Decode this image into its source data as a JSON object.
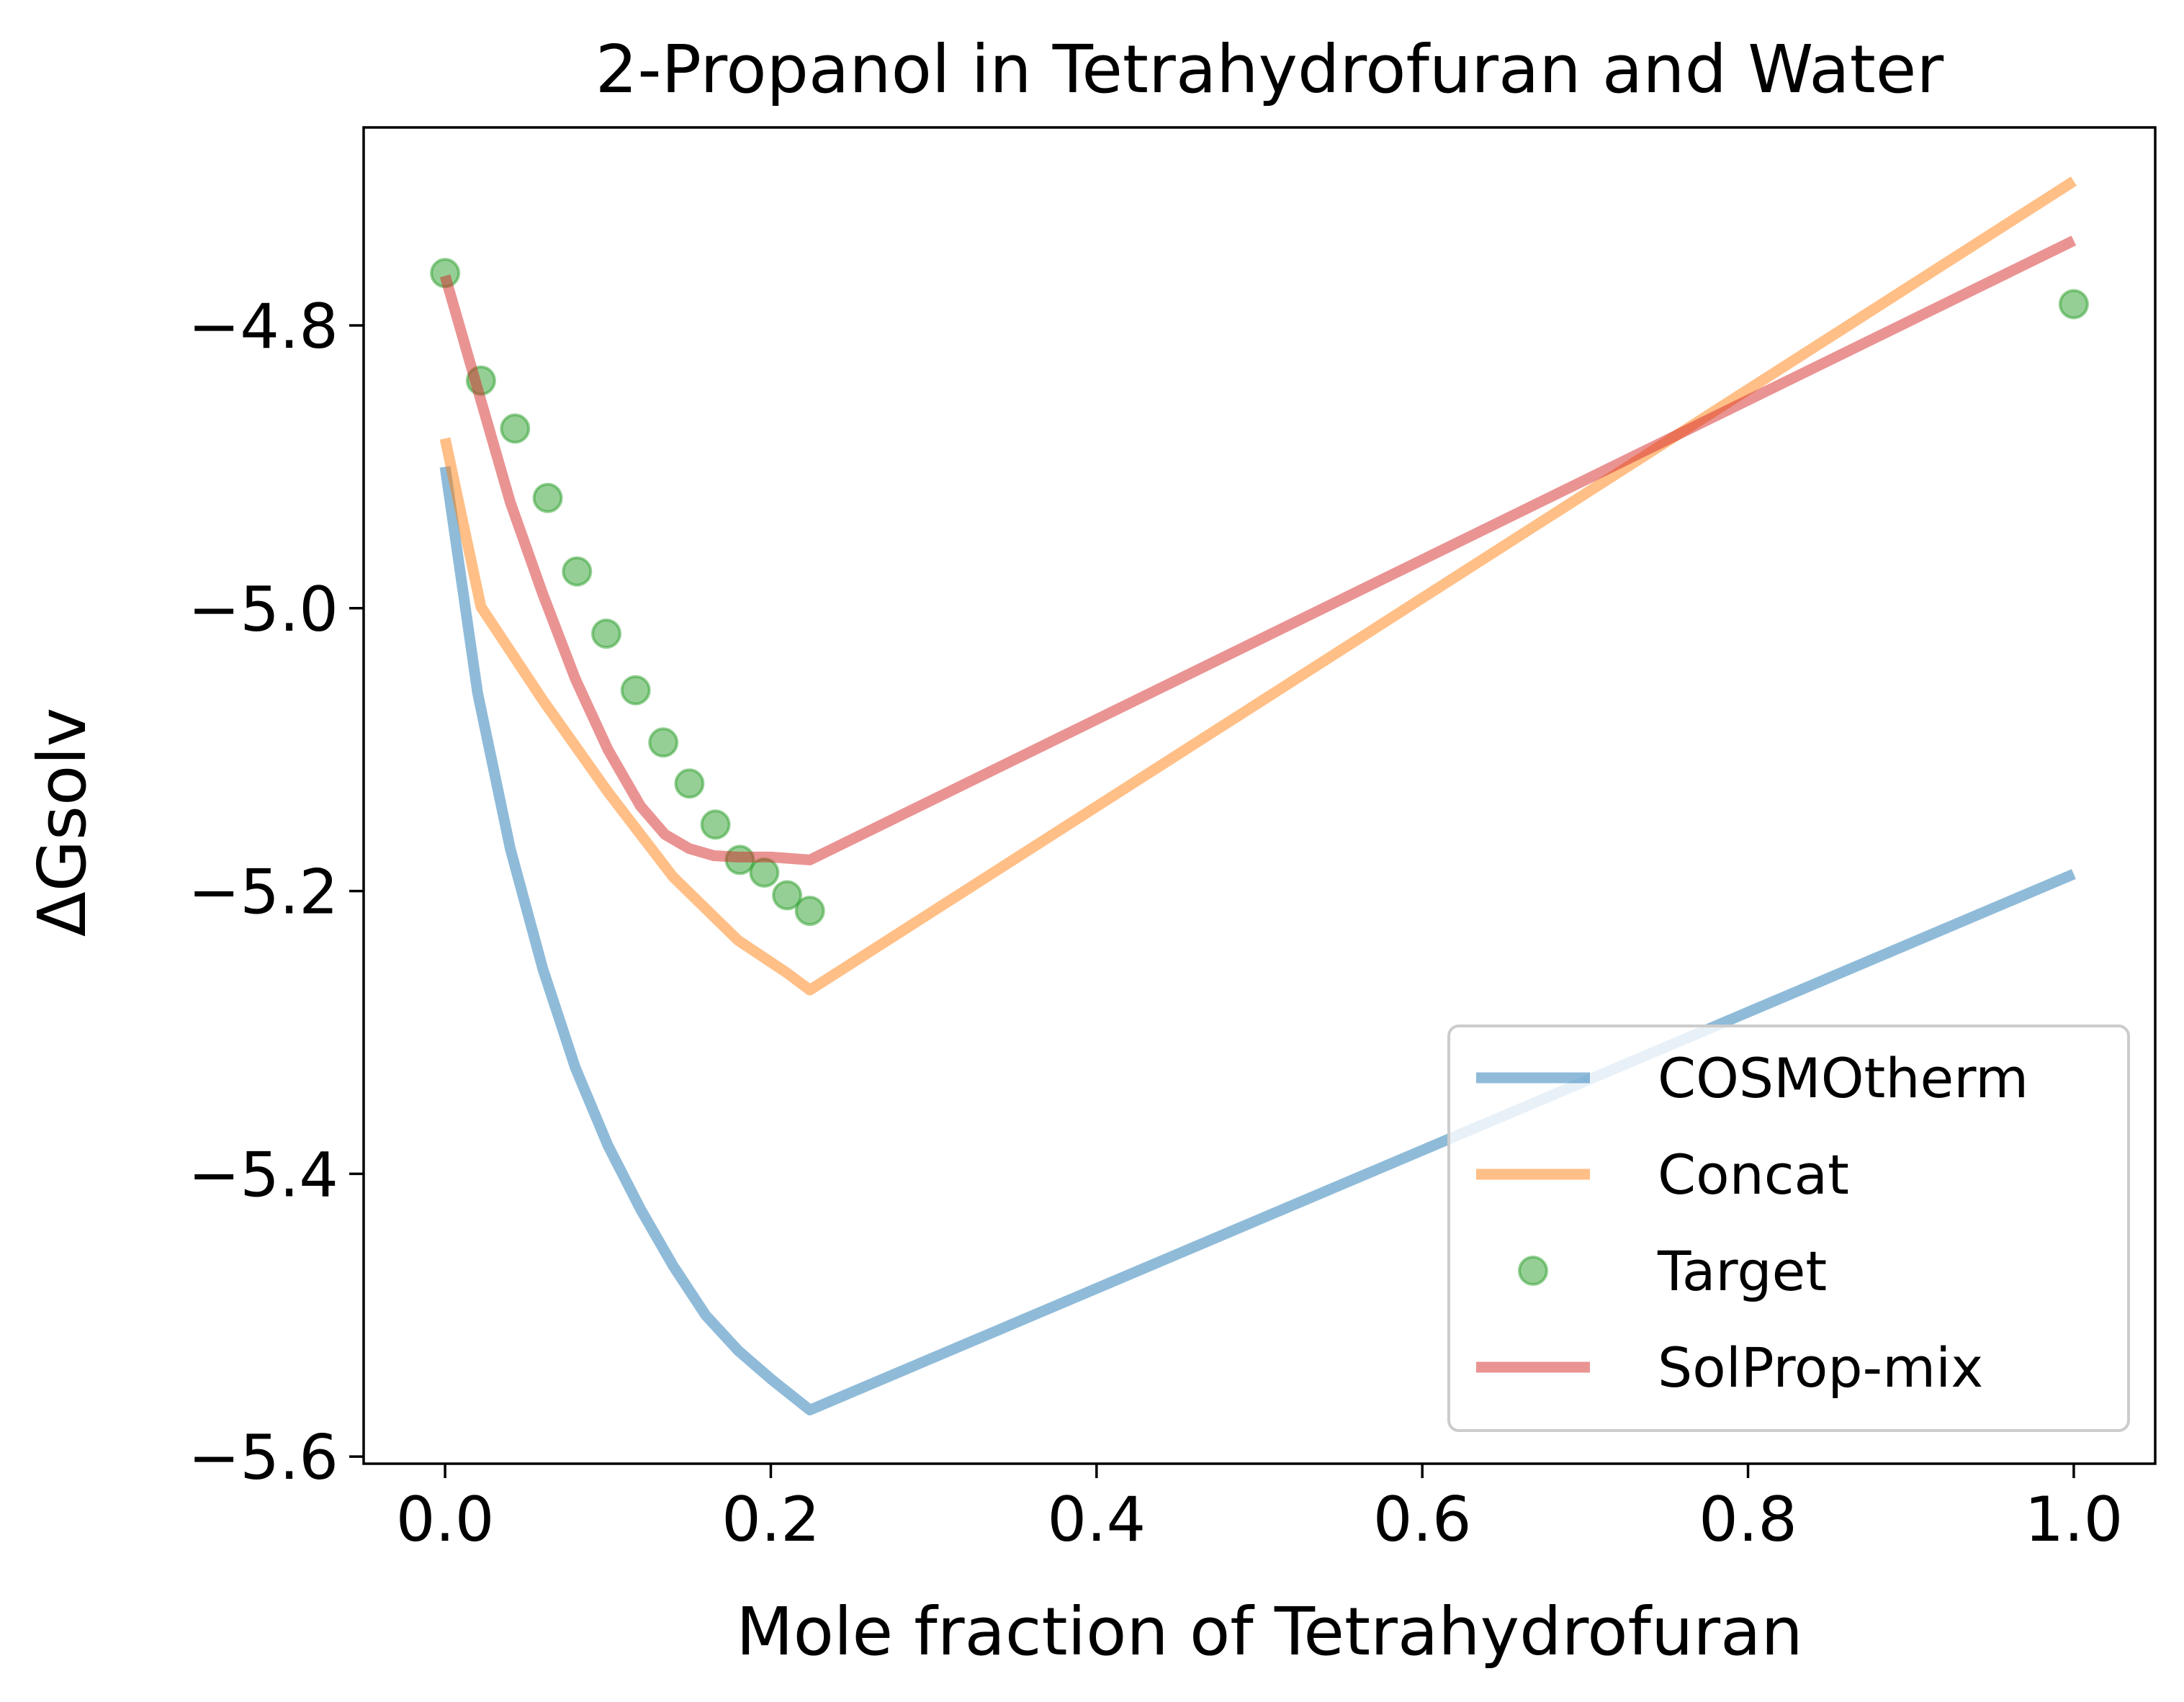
{
  "chart_data": {
    "type": "line",
    "title": "2-Propanol in Tetrahydrofuran and Water",
    "xlabel": "Mole fraction of Tetrahydrofuran",
    "ylabel": "ΔGsolv",
    "xlim": [
      -0.05,
      1.05
    ],
    "ylim": [
      -5.605,
      -4.66
    ],
    "xticks": [
      0.0,
      0.2,
      0.4,
      0.6,
      0.8,
      1.0
    ],
    "xtick_labels": [
      "0.0",
      "0.2",
      "0.4",
      "0.6",
      "0.8",
      "1.0"
    ],
    "yticks": [
      -4.8,
      -5.0,
      -5.2,
      -5.4,
      -5.6
    ],
    "ytick_labels": [
      "−4.8",
      "−5.0",
      "−5.2",
      "−5.4",
      "−5.6"
    ],
    "grid": false,
    "legend_position": "lower-right",
    "series": [
      {
        "name": "COSMOtherm",
        "style": "line",
        "color": "#1f77b4",
        "x": [
          0.0,
          0.02,
          0.04,
          0.06,
          0.08,
          0.1,
          0.12,
          0.14,
          0.16,
          0.18,
          0.2,
          0.224,
          1.0
        ],
        "y": [
          -4.9,
          -5.06,
          -5.17,
          -5.255,
          -5.325,
          -5.38,
          -5.425,
          -5.465,
          -5.5,
          -5.525,
          -5.545,
          -5.567,
          -5.188
        ]
      },
      {
        "name": "Concat",
        "style": "line",
        "color": "#ff7f0e",
        "x": [
          0.0,
          0.022,
          0.06,
          0.1,
          0.14,
          0.18,
          0.21,
          0.224,
          1.0
        ],
        "y": [
          -4.88,
          -4.999,
          -5.065,
          -5.13,
          -5.19,
          -5.235,
          -5.258,
          -5.27,
          -4.698
        ]
      },
      {
        "name": "Target",
        "style": "markers",
        "color": "#2ca02c",
        "x": [
          0.0,
          0.022,
          0.043,
          0.063,
          0.081,
          0.099,
          0.117,
          0.134,
          0.15,
          0.166,
          0.181,
          0.196,
          0.21,
          0.224,
          1.0
        ],
        "y": [
          -4.763,
          -4.839,
          -4.873,
          -4.922,
          -4.974,
          -5.018,
          -5.058,
          -5.095,
          -5.124,
          -5.153,
          -5.178,
          -5.187,
          -5.203,
          -5.214,
          -4.785
        ]
      },
      {
        "name": "SolProp-mix",
        "style": "line",
        "color": "#d62728",
        "x": [
          0.0,
          0.02,
          0.04,
          0.06,
          0.08,
          0.1,
          0.12,
          0.135,
          0.15,
          0.165,
          0.18,
          0.2,
          0.224,
          1.0
        ],
        "y": [
          -4.765,
          -4.845,
          -4.925,
          -4.99,
          -5.05,
          -5.1,
          -5.14,
          -5.16,
          -5.17,
          -5.175,
          -5.176,
          -5.176,
          -5.178,
          -4.74
        ]
      }
    ]
  }
}
